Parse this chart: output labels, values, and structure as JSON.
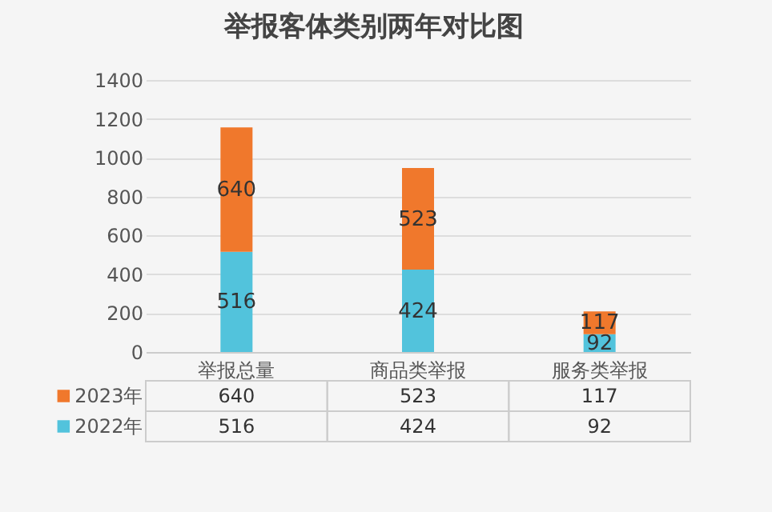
{
  "chart_data": {
    "type": "bar",
    "title": "举报客体类别两年对比图",
    "categories": [
      "举报总量",
      "商品类举报",
      "服务类举报"
    ],
    "series": [
      {
        "name": "2022年",
        "color": "#52c3dc",
        "values": [
          516,
          424,
          92
        ],
        "value_labels": [
          "516",
          "424",
          "92"
        ]
      },
      {
        "name": "2023年",
        "color": "#f0782c",
        "values": [
          640,
          523,
          117
        ],
        "value_labels": [
          "640",
          "523",
          "117"
        ]
      }
    ],
    "stacked": true,
    "ylim": [
      0,
      1400
    ],
    "yticks": [
      0,
      200,
      400,
      600,
      800,
      1000,
      1200,
      1400
    ],
    "grid": "y",
    "data_labels": true,
    "legend": "bottom left"
  }
}
